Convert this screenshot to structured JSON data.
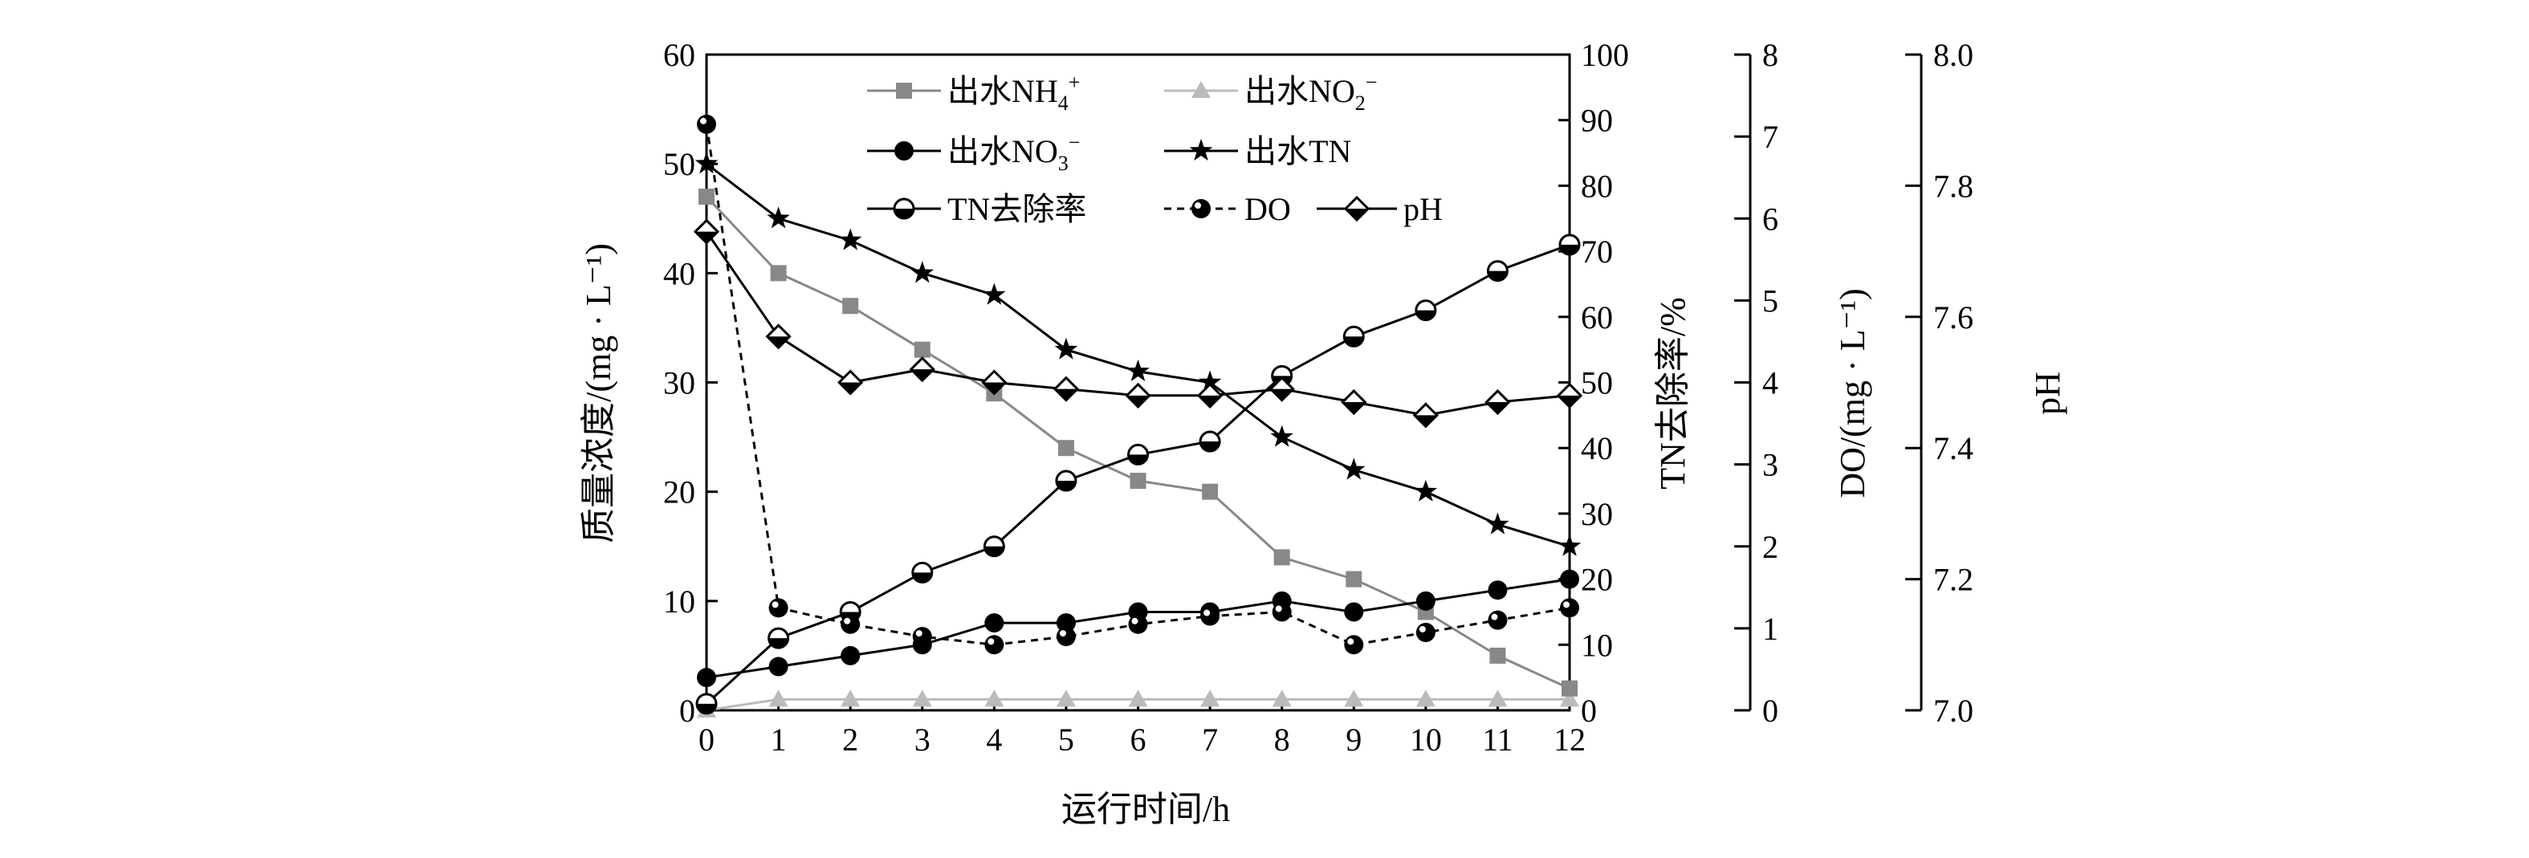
{
  "chart_data": {
    "type": "line",
    "xlabel": "运行时间/h",
    "x": [
      0,
      1,
      2,
      3,
      4,
      5,
      6,
      7,
      8,
      9,
      10,
      11,
      12
    ],
    "axes": {
      "left": {
        "label": "质量浓度/(mg · L⁻¹)",
        "ylim": [
          0,
          60
        ],
        "ticks": [
          0,
          10,
          20,
          30,
          40,
          50,
          60
        ]
      },
      "right1": {
        "label": "TN去除率/%",
        "ylim": [
          0,
          100
        ],
        "ticks": [
          0,
          10,
          20,
          30,
          40,
          50,
          60,
          70,
          80,
          90,
          100
        ]
      },
      "right2": {
        "label": "DO/(mg · L⁻¹)",
        "ylim": [
          0,
          8
        ],
        "ticks": [
          0,
          1,
          2,
          3,
          4,
          5,
          6,
          7,
          8
        ]
      },
      "right3": {
        "label": "pH",
        "ylim": [
          7.0,
          8.0
        ],
        "ticks": [
          "7.0",
          "7.2",
          "7.4",
          "7.6",
          "7.8",
          "8.0"
        ]
      }
    },
    "series": [
      {
        "key": "nh4",
        "legend": {
          "base": "出水NH",
          "sub": "4",
          "sup": "+"
        },
        "axis": "left",
        "color": "#888888",
        "dash": "",
        "marker": "square",
        "values": [
          47,
          40,
          37,
          33,
          29,
          24,
          21,
          20,
          14,
          12,
          9,
          5,
          2
        ]
      },
      {
        "key": "no2",
        "legend": {
          "base": "出水NO",
          "sub": "2",
          "sup": "−"
        },
        "axis": "left",
        "color": "#bbbbbb",
        "dash": "",
        "marker": "triangle",
        "values": [
          0,
          1,
          1,
          1,
          1,
          1,
          1,
          1,
          1,
          1,
          1,
          1,
          1
        ]
      },
      {
        "key": "no3",
        "legend": {
          "base": "出水NO",
          "sub": "3",
          "sup": "−"
        },
        "axis": "left",
        "color": "#000000",
        "dash": "",
        "marker": "circle",
        "values": [
          3,
          4,
          5,
          6,
          8,
          8,
          9,
          9,
          10,
          9,
          10,
          11,
          12
        ]
      },
      {
        "key": "tn",
        "legend": {
          "base": "出水TN",
          "sub": "",
          "sup": ""
        },
        "axis": "left",
        "color": "#000000",
        "dash": "",
        "marker": "star",
        "values": [
          50,
          45,
          43,
          40,
          38,
          33,
          31,
          30,
          25,
          22,
          20,
          17,
          15
        ]
      },
      {
        "key": "tnr",
        "legend": {
          "base": "TN去除率",
          "sub": "",
          "sup": ""
        },
        "axis": "right1",
        "color": "#000000",
        "dash": "",
        "marker": "halfcircle",
        "values": [
          1,
          11,
          15,
          21,
          25,
          35,
          39,
          41,
          51,
          57,
          61,
          67,
          71
        ]
      },
      {
        "key": "do",
        "legend": {
          "base": "DO",
          "sub": "",
          "sup": ""
        },
        "axis": "right2",
        "color": "#000000",
        "dash": "9,7",
        "marker": "ball",
        "values": [
          7.15,
          1.25,
          1.05,
          0.9,
          0.8,
          0.9,
          1.05,
          1.15,
          1.2,
          0.8,
          0.95,
          1.1,
          1.25
        ]
      },
      {
        "key": "ph",
        "legend": {
          "base": "pH",
          "sub": "",
          "sup": ""
        },
        "axis": "right3",
        "color": "#000000",
        "dash": "",
        "marker": "diamond",
        "values": [
          7.73,
          7.57,
          7.5,
          7.52,
          7.5,
          7.49,
          7.48,
          7.48,
          7.49,
          7.47,
          7.45,
          7.47,
          7.48
        ]
      }
    ],
    "legend_position": "top-center"
  }
}
